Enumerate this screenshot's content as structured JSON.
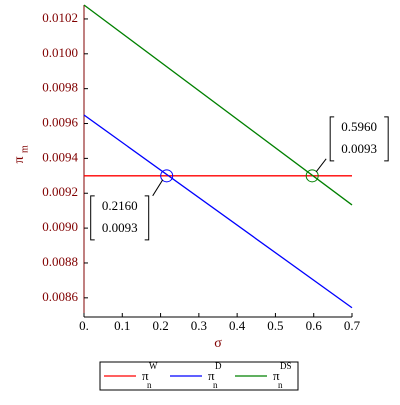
{
  "chart_data": {
    "type": "line",
    "xlabel": "σ",
    "ylabel": "π",
    "ylabel_sub": "m",
    "xlim": [
      0,
      0.7
    ],
    "xticks": [
      {
        "value": 0,
        "label": "0."
      },
      0.1,
      0.2,
      0.3,
      0.4,
      0.5,
      0.6,
      0.7
    ],
    "ylim": [
      0.00849,
      0.01028
    ],
    "yticks": [
      0.0086,
      0.0088,
      {
        "value": 0.009,
        "label": "0.0090"
      },
      0.0092,
      0.0094,
      0.0096,
      0.0098,
      {
        "value": 0.01,
        "label": "0.0100"
      },
      0.0102
    ],
    "series": [
      {
        "name": "π",
        "name_sub": "n",
        "name_sup": "W",
        "color": "#ff0000",
        "x": [
          0,
          0.7
        ],
        "values": [
          0.0093,
          0.0093
        ]
      },
      {
        "name": "π",
        "name_sub": "n",
        "name_sup": "D",
        "color": "#0000ff",
        "x": [
          0,
          0.7
        ],
        "values": [
          0.009649,
          0.008543
        ]
      },
      {
        "name": "π",
        "name_sub": "n",
        "name_sup": "DS",
        "color": "#008000",
        "x": [
          0,
          0.7
        ],
        "values": [
          0.01028,
          0.009133
        ]
      }
    ],
    "annotations": [
      {
        "x": 0.596,
        "y": 0.0093,
        "label": [
          "0.5960",
          "0.0093"
        ],
        "color": "#008000"
      },
      {
        "x": 0.216,
        "y": 0.0093,
        "label": [
          "0.2160",
          "0.0093"
        ],
        "color": "#0000ff"
      }
    ],
    "legend": "bottom"
  }
}
